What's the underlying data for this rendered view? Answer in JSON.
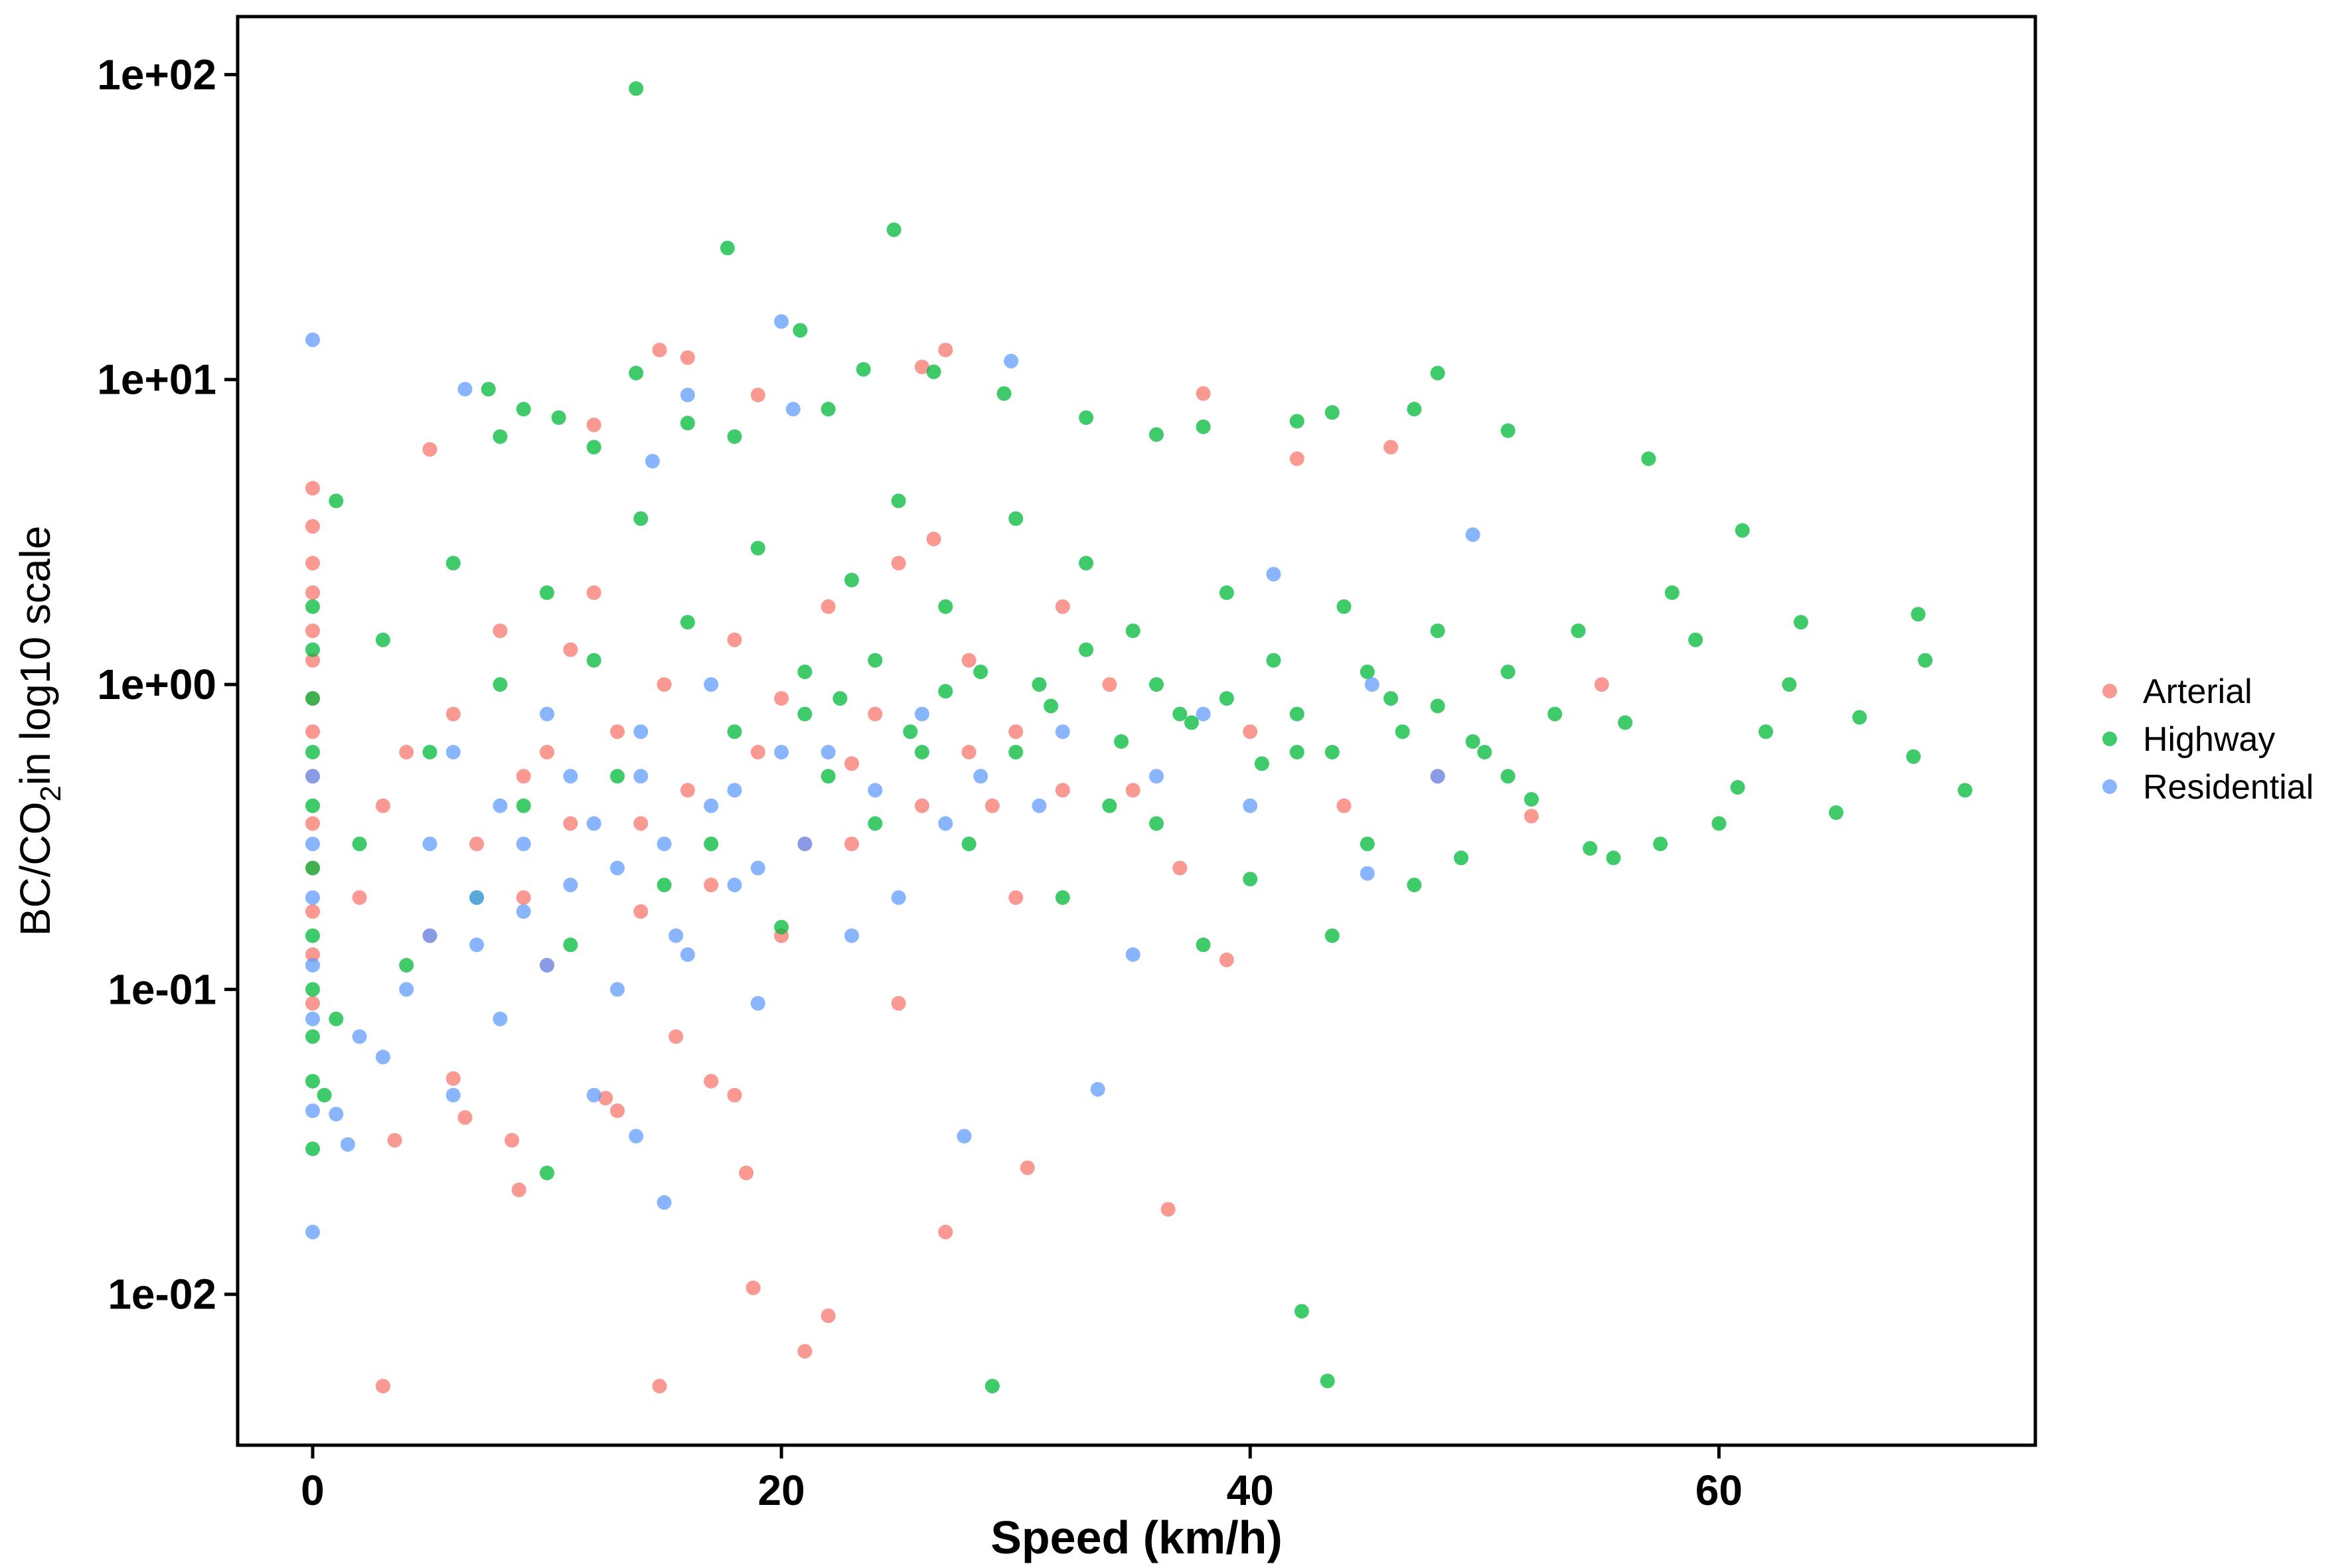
{
  "chart_data": {
    "type": "scatter",
    "title": "",
    "xlabel": "Speed (km/h)",
    "ylabel_parts": {
      "pre": "BC/CO",
      "sub": "2",
      "post": "in log10 scale"
    },
    "x_ticks": [
      0,
      20,
      40,
      60
    ],
    "y_ticks": [
      {
        "value": 0.01,
        "label": "1e-02"
      },
      {
        "value": 0.1,
        "label": "1e-01"
      },
      {
        "value": 1,
        "label": "1e+00"
      },
      {
        "value": 10,
        "label": "1e+01"
      },
      {
        "value": 100,
        "label": "1e+02"
      }
    ],
    "xlim": [
      -3.2,
      73.5
    ],
    "ylim": [
      0.0032,
      155
    ],
    "y_scale": "log10",
    "grid": false,
    "legend_position": "right",
    "legend": [
      "Arterial",
      "Highway",
      "Residential"
    ],
    "colors": {
      "Arterial": "#F8766D",
      "Highway": "#00BA38",
      "Residential": "#619CFF"
    },
    "series": [
      {
        "name": "Arterial",
        "points": [
          [
            0,
            4.4
          ],
          [
            0,
            3.3
          ],
          [
            0,
            2.5
          ],
          [
            0,
            2.0
          ],
          [
            0,
            1.5
          ],
          [
            0,
            1.2
          ],
          [
            0,
            0.9
          ],
          [
            0,
            0.7
          ],
          [
            0,
            0.5
          ],
          [
            0,
            0.35
          ],
          [
            0,
            0.25
          ],
          [
            0,
            0.18
          ],
          [
            0,
            0.13
          ],
          [
            0,
            0.09
          ],
          [
            3,
            0.005
          ],
          [
            3.5,
            0.032
          ],
          [
            5,
            5.9
          ],
          [
            6,
            0.051
          ],
          [
            6.5,
            0.038
          ],
          [
            8.5,
            0.032
          ],
          [
            8.8,
            0.022
          ],
          [
            9,
            0.2
          ],
          [
            10,
            0.6
          ],
          [
            11,
            1.3
          ],
          [
            12,
            7.1
          ],
          [
            12.5,
            0.044
          ],
          [
            13,
            0.04
          ],
          [
            14,
            0.35
          ],
          [
            14.8,
            12.5
          ],
          [
            14.8,
            0.005
          ],
          [
            15.5,
            0.07
          ],
          [
            16,
            11.8
          ],
          [
            17,
            0.05
          ],
          [
            18,
            0.045
          ],
          [
            18.5,
            0.025
          ],
          [
            18.8,
            0.0105
          ],
          [
            19,
            8.9
          ],
          [
            20,
            0.15
          ],
          [
            21,
            0.0065
          ],
          [
            22,
            0.0085
          ],
          [
            23,
            0.3
          ],
          [
            25,
            0.09
          ],
          [
            26,
            11.0
          ],
          [
            26.5,
            3.0
          ],
          [
            27,
            12.5
          ],
          [
            27,
            0.016
          ],
          [
            28,
            0.6
          ],
          [
            29,
            0.4
          ],
          [
            30,
            0.2
          ],
          [
            30.5,
            0.026
          ],
          [
            32,
            1.8
          ],
          [
            35,
            0.45
          ],
          [
            36.5,
            0.019
          ],
          [
            37,
            0.25
          ],
          [
            38,
            9.0
          ],
          [
            39,
            0.125
          ],
          [
            40,
            0.7
          ],
          [
            42,
            5.5
          ],
          [
            44,
            0.4
          ],
          [
            46,
            6.0
          ],
          [
            48,
            0.5
          ],
          [
            52,
            0.37
          ],
          [
            55,
            1.0
          ],
          [
            2,
            0.2
          ],
          [
            3,
            0.4
          ],
          [
            4,
            0.6
          ],
          [
            5,
            0.15
          ],
          [
            6,
            0.8
          ],
          [
            7,
            0.3
          ],
          [
            8,
            1.5
          ],
          [
            9,
            0.5
          ],
          [
            10,
            0.12
          ],
          [
            11,
            0.35
          ],
          [
            12,
            2.0
          ],
          [
            13,
            0.7
          ],
          [
            14,
            0.18
          ],
          [
            15,
            1.0
          ],
          [
            16,
            0.45
          ],
          [
            17,
            0.22
          ],
          [
            18,
            1.4
          ],
          [
            19,
            0.6
          ],
          [
            20,
            0.9
          ],
          [
            21,
            0.3
          ],
          [
            22,
            1.8
          ],
          [
            23,
            0.55
          ],
          [
            24,
            0.8
          ],
          [
            25,
            2.5
          ],
          [
            26,
            0.4
          ],
          [
            28,
            1.2
          ],
          [
            30,
            0.7
          ],
          [
            32,
            0.45
          ],
          [
            34,
            1.0
          ]
        ]
      },
      {
        "name": "Highway",
        "points": [
          [
            13.8,
            90
          ],
          [
            17.7,
            27
          ],
          [
            24.8,
            31
          ],
          [
            20.8,
            14.5
          ],
          [
            13.8,
            10.5
          ],
          [
            7.5,
            9.3
          ],
          [
            9,
            8
          ],
          [
            8,
            6.5
          ],
          [
            10.5,
            7.5
          ],
          [
            12,
            6
          ],
          [
            16,
            7.2
          ],
          [
            18,
            6.5
          ],
          [
            22,
            8
          ],
          [
            23.5,
            10.8
          ],
          [
            26.5,
            10.6
          ],
          [
            29.5,
            9.0
          ],
          [
            33,
            7.5
          ],
          [
            36,
            6.6
          ],
          [
            38,
            7.0
          ],
          [
            42,
            7.3
          ],
          [
            43.5,
            7.8
          ],
          [
            47,
            8.0
          ],
          [
            48,
            10.5
          ],
          [
            51,
            6.8
          ],
          [
            57,
            5.5
          ],
          [
            61,
            3.2
          ],
          [
            63.5,
            1.6
          ],
          [
            68.5,
            1.7
          ],
          [
            68.8,
            1.2
          ],
          [
            70.5,
            0.45
          ],
          [
            68.3,
            0.58
          ],
          [
            66,
            0.78
          ],
          [
            65,
            0.38
          ],
          [
            63,
            1.0
          ],
          [
            62,
            0.7
          ],
          [
            60.8,
            0.46
          ],
          [
            60,
            0.35
          ],
          [
            59,
            1.4
          ],
          [
            58,
            2.0
          ],
          [
            57.5,
            0.3
          ],
          [
            56,
            0.75
          ],
          [
            55.5,
            0.27
          ],
          [
            54.5,
            0.29
          ],
          [
            54,
            1.5
          ],
          [
            53,
            0.8
          ],
          [
            52,
            0.42
          ],
          [
            51,
            1.1
          ],
          [
            50,
            0.6
          ],
          [
            49,
            0.27
          ],
          [
            48,
            1.5
          ],
          [
            47,
            0.22
          ],
          [
            46,
            0.9
          ],
          [
            45,
            0.3
          ],
          [
            44,
            1.8
          ],
          [
            43.5,
            0.15
          ],
          [
            42.2,
            0.0088
          ],
          [
            43.3,
            0.0052
          ],
          [
            42,
            0.6
          ],
          [
            41,
            1.2
          ],
          [
            40,
            0.23
          ],
          [
            39,
            2.0
          ],
          [
            38,
            0.14
          ],
          [
            37,
            0.8
          ],
          [
            36,
            0.35
          ],
          [
            35,
            1.5
          ],
          [
            34,
            0.4
          ],
          [
            33,
            2.5
          ],
          [
            32,
            0.2
          ],
          [
            31,
            1.0
          ],
          [
            30,
            3.5
          ],
          [
            29,
            0.005
          ],
          [
            28,
            0.3
          ],
          [
            27,
            1.8
          ],
          [
            26,
            0.6
          ],
          [
            25,
            4.0
          ],
          [
            24,
            0.35
          ],
          [
            23,
            2.2
          ],
          [
            22,
            0.5
          ],
          [
            21,
            1.1
          ],
          [
            20,
            0.16
          ],
          [
            19,
            2.8
          ],
          [
            18,
            0.7
          ],
          [
            17,
            0.3
          ],
          [
            16,
            1.6
          ],
          [
            15,
            0.22
          ],
          [
            14,
            3.5
          ],
          [
            13,
            0.5
          ],
          [
            12,
            1.2
          ],
          [
            11,
            0.14
          ],
          [
            10,
            0.025
          ],
          [
            10,
            2.0
          ],
          [
            9,
            0.4
          ],
          [
            8,
            1.0
          ],
          [
            7,
            0.2
          ],
          [
            6,
            2.5
          ],
          [
            5,
            0.6
          ],
          [
            4,
            0.12
          ],
          [
            3,
            1.4
          ],
          [
            2,
            0.3
          ],
          [
            1,
            0.08
          ],
          [
            1,
            4.0
          ],
          [
            0,
            0.03
          ],
          [
            0,
            0.05
          ],
          [
            0,
            0.07
          ],
          [
            0,
            0.1
          ],
          [
            0,
            0.15
          ],
          [
            0,
            0.25
          ],
          [
            0,
            0.4
          ],
          [
            0,
            0.6
          ],
          [
            0,
            0.9
          ],
          [
            0,
            1.3
          ],
          [
            0,
            1.8
          ],
          [
            0.5,
            0.045
          ],
          [
            21,
            0.8
          ],
          [
            22.5,
            0.9
          ],
          [
            24,
            1.2
          ],
          [
            25.5,
            0.7
          ],
          [
            27,
            0.95
          ],
          [
            28.5,
            1.1
          ],
          [
            30,
            0.6
          ],
          [
            31.5,
            0.85
          ],
          [
            33,
            1.3
          ],
          [
            34.5,
            0.65
          ],
          [
            36,
            1.0
          ],
          [
            37.5,
            0.75
          ],
          [
            39,
            0.9
          ],
          [
            40.5,
            0.55
          ],
          [
            42,
            0.8
          ],
          [
            43.5,
            0.6
          ],
          [
            45,
            1.1
          ],
          [
            46.5,
            0.7
          ],
          [
            48,
            0.85
          ],
          [
            49.5,
            0.65
          ],
          [
            51,
            0.5
          ]
        ]
      },
      {
        "name": "Residential",
        "points": [
          [
            0,
            13.5
          ],
          [
            0,
            0.016
          ],
          [
            0,
            0.04
          ],
          [
            0,
            0.08
          ],
          [
            0,
            0.12
          ],
          [
            0,
            0.2
          ],
          [
            0,
            0.3
          ],
          [
            0,
            0.5
          ],
          [
            1,
            0.039
          ],
          [
            1.5,
            0.031
          ],
          [
            2,
            0.07
          ],
          [
            3,
            0.06
          ],
          [
            4,
            0.1
          ],
          [
            5,
            0.15
          ],
          [
            6,
            0.045
          ],
          [
            6.5,
            9.3
          ],
          [
            7,
            0.2
          ],
          [
            8,
            0.08
          ],
          [
            9,
            0.3
          ],
          [
            10,
            0.12
          ],
          [
            11,
            0.5
          ],
          [
            12,
            0.045
          ],
          [
            13,
            0.25
          ],
          [
            13.8,
            0.033
          ],
          [
            14,
            0.5
          ],
          [
            14.5,
            5.4
          ],
          [
            15,
            0.02
          ],
          [
            15.5,
            0.15
          ],
          [
            16,
            8.9
          ],
          [
            17,
            0.4
          ],
          [
            18,
            0.22
          ],
          [
            19,
            0.09
          ],
          [
            20,
            15.5
          ],
          [
            20.5,
            8.0
          ],
          [
            21,
            0.3
          ],
          [
            22,
            0.6
          ],
          [
            23,
            0.15
          ],
          [
            24,
            0.45
          ],
          [
            25,
            0.2
          ],
          [
            26,
            0.8
          ],
          [
            27,
            0.35
          ],
          [
            27.8,
            0.033
          ],
          [
            28.5,
            0.5
          ],
          [
            29.8,
            11.5
          ],
          [
            31,
            0.4
          ],
          [
            32,
            0.7
          ],
          [
            33.5,
            0.047
          ],
          [
            35,
            0.13
          ],
          [
            36,
            0.5
          ],
          [
            38,
            0.8
          ],
          [
            40,
            0.4
          ],
          [
            41,
            2.3
          ],
          [
            45,
            0.24
          ],
          [
            45.2,
            1.0
          ],
          [
            48,
            0.5
          ],
          [
            49.5,
            3.1
          ],
          [
            5,
            0.3
          ],
          [
            6,
            0.6
          ],
          [
            7,
            0.14
          ],
          [
            8,
            0.4
          ],
          [
            9,
            0.18
          ],
          [
            10,
            0.8
          ],
          [
            11,
            0.22
          ],
          [
            12,
            0.35
          ],
          [
            13,
            0.1
          ],
          [
            14,
            0.7
          ],
          [
            15,
            0.3
          ],
          [
            16,
            0.13
          ],
          [
            17,
            1.0
          ],
          [
            18,
            0.45
          ],
          [
            19,
            0.25
          ],
          [
            20,
            0.6
          ]
        ]
      }
    ]
  }
}
